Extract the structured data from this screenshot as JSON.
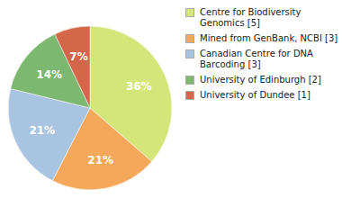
{
  "chart_data": {
    "type": "pie",
    "categories": [
      "Centre for Biodiversity\nGenomics [5]",
      "Mined from GenBank, NCBI [3]",
      "Canadian Centre for DNA\nBarcoding [3]",
      "University of Edinburgh [2]",
      "University of Dundee [1]"
    ],
    "values": [
      36,
      21,
      21,
      14,
      7
    ],
    "value_labels": [
      "36%",
      "21%",
      "21%",
      "14%",
      "7%"
    ],
    "colors": [
      "#d4e57a",
      "#f5a85a",
      "#a8c4e0",
      "#7db870",
      "#d4674a"
    ],
    "data_labels": true,
    "legend": "right"
  }
}
